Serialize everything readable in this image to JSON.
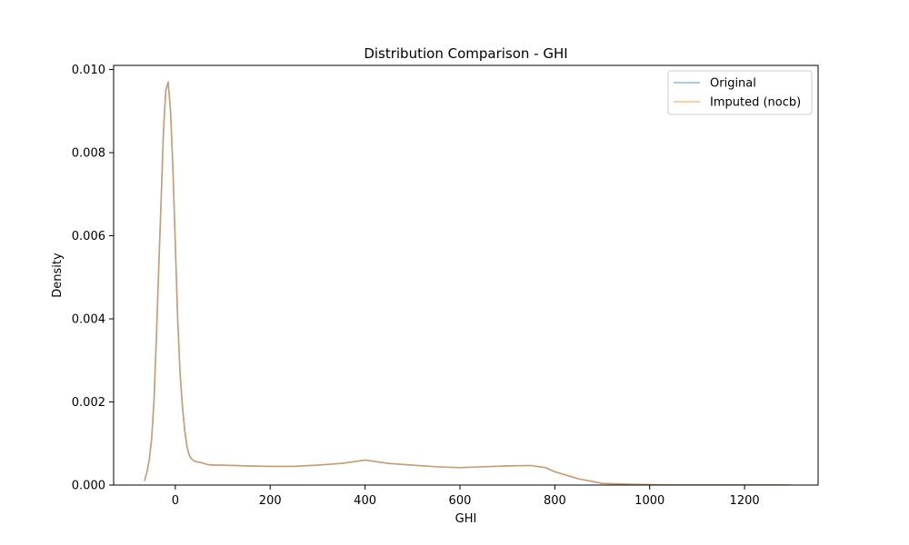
{
  "chart_data": {
    "type": "line",
    "title": "Distribution Comparison - GHI",
    "xlabel": "GHI",
    "ylabel": "Density",
    "xlim": [
      -130,
      1355
    ],
    "ylim": [
      0,
      0.0101
    ],
    "xticks": [
      0,
      200,
      400,
      600,
      800,
      1000,
      1200
    ],
    "xtick_labels": [
      "0",
      "200",
      "400",
      "600",
      "800",
      "1000",
      "1200"
    ],
    "yticks": [
      0.0,
      0.002,
      0.004,
      0.006,
      0.008,
      0.01
    ],
    "ytick_labels": [
      "0.000",
      "0.002",
      "0.004",
      "0.006",
      "0.008",
      "0.010"
    ],
    "grid": false,
    "legend_position": "top-right",
    "series": [
      {
        "name": "Original",
        "color": "#1f77b4",
        "opacity": 0.5,
        "x": [
          -65,
          -60,
          -55,
          -50,
          -45,
          -40,
          -35,
          -30,
          -25,
          -20,
          -15,
          -10,
          -5,
          0,
          5,
          10,
          15,
          20,
          25,
          30,
          35,
          40,
          45,
          50,
          55,
          60,
          70,
          80,
          100,
          150,
          200,
          250,
          300,
          350,
          400,
          450,
          500,
          550,
          600,
          650,
          700,
          750,
          780,
          800,
          850,
          900,
          950,
          1000,
          1030,
          1060,
          1100,
          1200,
          1295
        ],
        "y": [
          0.0001,
          0.0003,
          0.0006,
          0.0011,
          0.002,
          0.0035,
          0.0052,
          0.0068,
          0.0085,
          0.0095,
          0.0097,
          0.009,
          0.0076,
          0.0058,
          0.004,
          0.0027,
          0.0019,
          0.0013,
          0.0009,
          0.0007,
          0.00062,
          0.00058,
          0.00056,
          0.00055,
          0.00054,
          0.00052,
          0.00049,
          0.00048,
          0.00048,
          0.00046,
          0.00045,
          0.00045,
          0.00048,
          0.00052,
          0.0006,
          0.00052,
          0.00048,
          0.00044,
          0.00042,
          0.00044,
          0.00046,
          0.00047,
          0.00042,
          0.00032,
          0.00015,
          4e-05,
          2e-05,
          1e-05,
          5e-06,
          2e-06,
          1e-06,
          5e-07,
          2e-07
        ]
      },
      {
        "name": "Imputed (nocb)",
        "color": "#ff7f0e",
        "opacity": 0.5,
        "x": [
          -65,
          -60,
          -55,
          -50,
          -45,
          -40,
          -35,
          -30,
          -25,
          -20,
          -15,
          -10,
          -5,
          0,
          5,
          10,
          15,
          20,
          25,
          30,
          35,
          40,
          45,
          50,
          55,
          60,
          70,
          80,
          100,
          150,
          200,
          250,
          300,
          350,
          400,
          450,
          500,
          550,
          600,
          650,
          700,
          750,
          780,
          800,
          850,
          900,
          950,
          1000,
          1030,
          1060,
          1100,
          1200,
          1295
        ],
        "y": [
          0.0001,
          0.0003,
          0.0006,
          0.0011,
          0.002,
          0.0035,
          0.0052,
          0.0068,
          0.0085,
          0.0095,
          0.0097,
          0.009,
          0.0076,
          0.0058,
          0.004,
          0.0027,
          0.0019,
          0.0013,
          0.0009,
          0.0007,
          0.00062,
          0.00058,
          0.00056,
          0.00055,
          0.00054,
          0.00052,
          0.00049,
          0.00048,
          0.00048,
          0.00046,
          0.00045,
          0.00045,
          0.00048,
          0.00052,
          0.0006,
          0.00052,
          0.00048,
          0.00044,
          0.00042,
          0.00044,
          0.00046,
          0.00047,
          0.00042,
          0.00032,
          0.00015,
          4e-05,
          2e-05,
          1e-05,
          5e-06,
          2e-06,
          1e-06,
          5e-07,
          2e-07
        ]
      }
    ]
  }
}
